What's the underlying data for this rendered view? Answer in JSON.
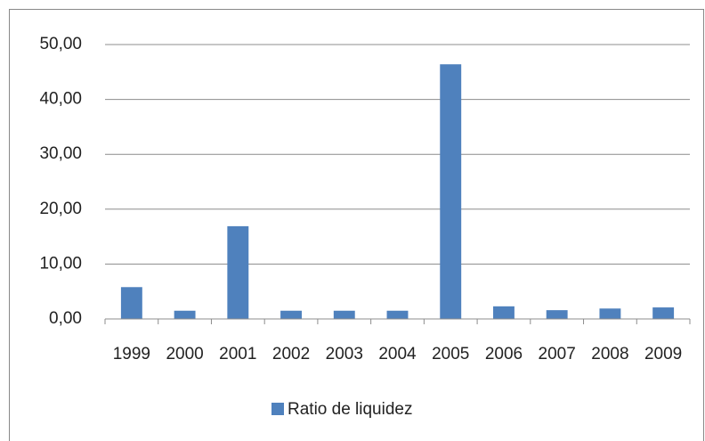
{
  "chart_data": {
    "type": "bar",
    "categories": [
      "1999",
      "2000",
      "2001",
      "2002",
      "2003",
      "2004",
      "2005",
      "2006",
      "2007",
      "2008",
      "2009"
    ],
    "series": [
      {
        "name": "Ratio de liquidez",
        "color": "#4f81bd",
        "values": [
          5.8,
          1.5,
          16.9,
          1.5,
          1.5,
          1.5,
          46.4,
          2.3,
          1.6,
          1.9,
          2.1
        ]
      }
    ],
    "ylim": [
      0,
      50
    ],
    "yticks": [
      {
        "value": 0,
        "label": "0,00"
      },
      {
        "value": 10,
        "label": "10,00"
      },
      {
        "value": 20,
        "label": "20,00"
      },
      {
        "value": 30,
        "label": "30,00"
      },
      {
        "value": 40,
        "label": "40,00"
      },
      {
        "value": 50,
        "label": "50,00"
      }
    ],
    "grid": true,
    "legend": "bottom"
  }
}
